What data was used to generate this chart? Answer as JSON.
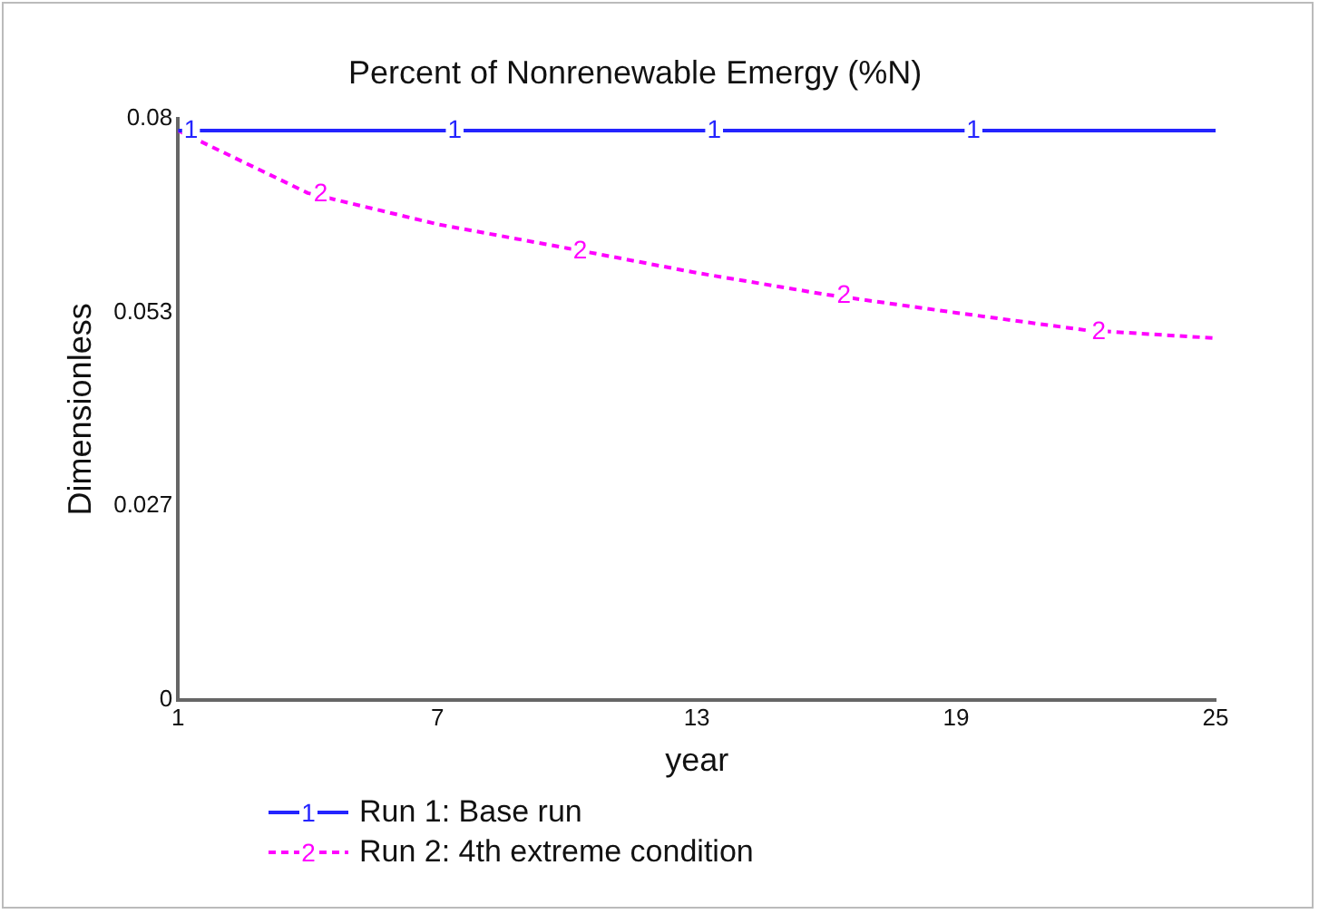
{
  "chart_data": {
    "type": "line",
    "title": "Percent of Nonrenewable Emergy (%N)",
    "xlabel": "year",
    "ylabel": "Dimensionless",
    "x": [
      1,
      4,
      7,
      10,
      13,
      16,
      19,
      22,
      25
    ],
    "series": [
      {
        "name": "Run 1: Base run",
        "color": "#2424ff",
        "line_style": "solid",
        "values": [
          0.0784,
          0.0784,
          0.0784,
          0.0784,
          0.0784,
          0.0784,
          0.0784,
          0.0784,
          0.0784
        ]
      },
      {
        "name": "Run 2: 4th extreme condition",
        "color": "#ff00ff",
        "line_style": "dashed",
        "values": [
          0.0784,
          0.0698,
          0.0655,
          0.0622,
          0.0588,
          0.0558,
          0.0533,
          0.0509,
          0.0498
        ]
      }
    ],
    "annotations": [
      {
        "text": "1",
        "x": 1.3,
        "y": 0.0784
      },
      {
        "text": "1",
        "x": 7.4,
        "y": 0.0784
      },
      {
        "text": "1",
        "x": 13.4,
        "y": 0.0784
      },
      {
        "text": "1",
        "x": 19.4,
        "y": 0.0784
      },
      {
        "text": "2",
        "x": 4.3,
        "y": 0.0696
      },
      {
        "text": "2",
        "x": 10.3,
        "y": 0.0617
      },
      {
        "text": "2",
        "x": 16.4,
        "y": 0.0556
      },
      {
        "text": "2",
        "x": 22.3,
        "y": 0.0506
      }
    ],
    "xlim": [
      1,
      25
    ],
    "xticks": [
      1,
      7,
      13,
      19,
      25
    ],
    "ylim": [
      0,
      0.08
    ],
    "yticks": [
      0,
      {
        "value": 0.02667,
        "label": "0.027"
      },
      {
        "value": 0.05333,
        "label": "0.053"
      },
      0.08
    ],
    "grid": false,
    "legend": "bottom",
    "marker": "none"
  }
}
